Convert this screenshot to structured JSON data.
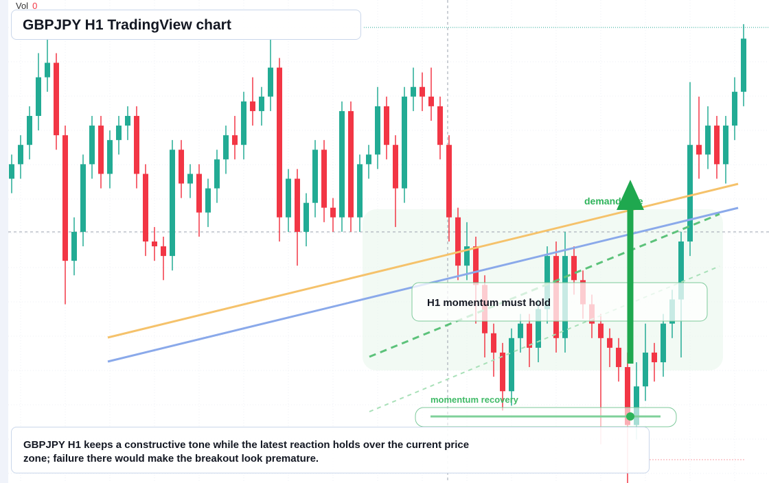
{
  "chart_data": {
    "type": "candlestick",
    "title": "GBPJPY H1 TradingView chart",
    "volume_label": "Vol",
    "volume": 0,
    "annotations": [
      "demand side",
      "H1 momentum must hold",
      "momentum recovery"
    ],
    "caption": "GBPJPY H1 keeps a constructive tone while the latest reaction holds over the current price zone; failure there would make the breakout look premature.",
    "up_color": "#22ab94",
    "down_color": "#f23645",
    "ylim": [
      0,
      100
    ],
    "open": [
      63,
      66,
      70,
      76,
      84,
      87,
      72,
      46,
      52,
      66,
      74,
      64,
      71,
      74,
      76,
      64,
      50,
      49,
      47,
      69,
      62,
      64,
      56,
      61,
      67,
      72,
      70,
      79,
      77,
      80,
      86,
      55,
      63,
      52,
      58,
      69,
      57,
      55,
      77,
      55,
      66,
      68,
      78,
      70,
      61,
      80,
      82,
      80,
      78,
      70,
      55,
      45,
      49,
      41,
      31,
      27,
      19,
      30,
      33,
      28,
      36,
      47,
      30,
      47,
      42,
      37,
      33,
      30,
      28,
      24,
      12,
      20,
      27,
      25,
      33,
      38,
      50,
      70,
      68,
      74,
      66,
      74,
      81
    ],
    "high": [
      68,
      72,
      78,
      89,
      92,
      89,
      74,
      55,
      68,
      76,
      76,
      73,
      76,
      78,
      78,
      66,
      53,
      51,
      71,
      71,
      66,
      66,
      63,
      69,
      74,
      76,
      81,
      84,
      82,
      92,
      88,
      65,
      65,
      60,
      71,
      71,
      59,
      79,
      79,
      68,
      70,
      82,
      80,
      72,
      82,
      86,
      85,
      86,
      80,
      72,
      57,
      54,
      51,
      43,
      33,
      29,
      32,
      35,
      35,
      38,
      49,
      50,
      52,
      49,
      44,
      39,
      35,
      32,
      30,
      27,
      25,
      33,
      29,
      35,
      40,
      52,
      83,
      80,
      78,
      76,
      76,
      84,
      95
    ],
    "low": [
      60,
      63,
      67,
      73,
      81,
      69,
      37,
      43,
      49,
      63,
      61,
      61,
      68,
      71,
      61,
      47,
      46,
      42,
      44,
      59,
      59,
      51,
      53,
      58,
      64,
      67,
      67,
      74,
      74,
      77,
      50,
      52,
      45,
      49,
      55,
      54,
      52,
      52,
      52,
      52,
      63,
      65,
      67,
      53,
      58,
      77,
      77,
      75,
      67,
      50,
      42,
      42,
      33,
      26,
      22,
      15,
      16,
      27,
      24,
      25,
      33,
      27,
      27,
      39,
      34,
      30,
      8,
      24,
      21,
      0,
      9,
      17,
      21,
      22,
      30,
      26,
      47,
      63,
      65,
      63,
      62,
      71,
      78
    ],
    "close": [
      66,
      70,
      76,
      84,
      87,
      72,
      46,
      52,
      66,
      74,
      64,
      71,
      74,
      76,
      64,
      50,
      49,
      47,
      69,
      62,
      64,
      56,
      61,
      67,
      72,
      70,
      79,
      77,
      80,
      86,
      55,
      63,
      52,
      58,
      69,
      57,
      55,
      77,
      55,
      66,
      68,
      78,
      70,
      61,
      80,
      82,
      80,
      78,
      70,
      55,
      45,
      49,
      41,
      31,
      27,
      19,
      30,
      33,
      28,
      36,
      47,
      30,
      47,
      42,
      37,
      33,
      30,
      28,
      24,
      12,
      20,
      27,
      25,
      33,
      38,
      50,
      70,
      68,
      74,
      66,
      74,
      81,
      92
    ]
  }
}
